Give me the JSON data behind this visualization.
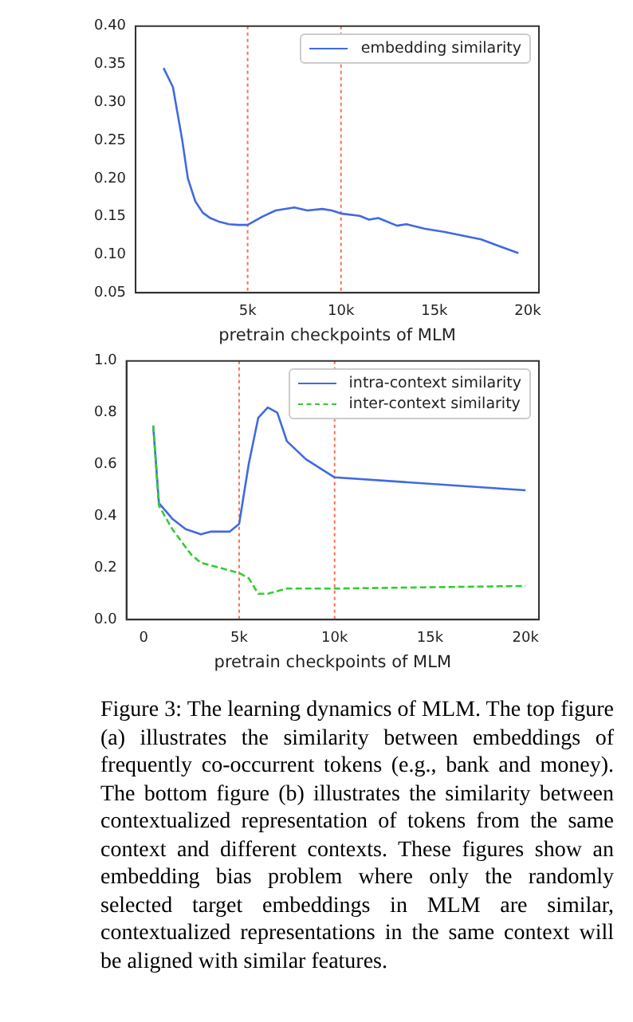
{
  "chart_data": [
    {
      "type": "line",
      "xlabel": "pretrain checkpoints of MLM",
      "legend": "top right",
      "marker": "none",
      "grid": false,
      "xlim": [
        -1000,
        20600
      ],
      "xticks": [
        {
          "value": 5000,
          "label": "5k"
        },
        {
          "value": 10000,
          "label": "10k"
        },
        {
          "value": 15000,
          "label": "15k"
        },
        {
          "value": 20000,
          "label": "20k"
        }
      ],
      "ylim": [
        0.05,
        0.4
      ],
      "yticks": [
        {
          "value": 0.05,
          "label": "0.05"
        },
        {
          "value": 0.1,
          "label": "0.10"
        },
        {
          "value": 0.15,
          "label": "0.15"
        },
        {
          "value": 0.2,
          "label": "0.20"
        },
        {
          "value": 0.25,
          "label": "0.25"
        },
        {
          "value": 0.3,
          "label": "0.30"
        },
        {
          "value": 0.35,
          "label": "0.35"
        },
        {
          "value": 0.4,
          "label": "0.40"
        }
      ],
      "ref_lines": [
        {
          "axis": "x",
          "value": 5000,
          "color": "#ff6f4f",
          "line_style": "dotted"
        },
        {
          "axis": "x",
          "value": 10000,
          "color": "#ff6f4f",
          "line_style": "dotted"
        }
      ],
      "series": [
        {
          "name": "embedding similarity",
          "color": "#4169e1",
          "line_style": "solid",
          "x": [
            500,
            1000,
            1500,
            1800,
            2200,
            2600,
            3000,
            3500,
            4000,
            4500,
            5000,
            5800,
            6500,
            7500,
            8200,
            9000,
            9500,
            10000,
            11000,
            11500,
            12000,
            13000,
            13500,
            14500,
            15500,
            16500,
            17500,
            18500,
            19500
          ],
          "values": [
            0.345,
            0.32,
            0.25,
            0.2,
            0.17,
            0.155,
            0.148,
            0.143,
            0.14,
            0.139,
            0.139,
            0.15,
            0.158,
            0.162,
            0.158,
            0.16,
            0.158,
            0.154,
            0.151,
            0.146,
            0.148,
            0.138,
            0.14,
            0.134,
            0.13,
            0.125,
            0.12,
            0.111,
            0.102
          ]
        }
      ]
    },
    {
      "type": "line",
      "xlabel": "pretrain checkpoints of MLM",
      "legend": "top right",
      "marker": "none",
      "grid": false,
      "xlim": [
        -900,
        20700
      ],
      "xticks": [
        {
          "value": 0,
          "label": "0"
        },
        {
          "value": 5000,
          "label": "5k"
        },
        {
          "value": 10000,
          "label": "10k"
        },
        {
          "value": 15000,
          "label": "15k"
        },
        {
          "value": 20000,
          "label": "20k"
        }
      ],
      "ylim": [
        0,
        1
      ],
      "yticks": [
        {
          "value": 0,
          "label": "0.0"
        },
        {
          "value": 0.2,
          "label": "0.2"
        },
        {
          "value": 0.4,
          "label": "0.4"
        },
        {
          "value": 0.6,
          "label": "0.6"
        },
        {
          "value": 0.8,
          "label": "0.8"
        },
        {
          "value": 1,
          "label": "1.0"
        }
      ],
      "ref_lines": [
        {
          "axis": "x",
          "value": 5000,
          "color": "#ff6f4f",
          "line_style": "dotted"
        },
        {
          "axis": "x",
          "value": 10000,
          "color": "#ff6f4f",
          "line_style": "dotted"
        }
      ],
      "annotations": [
        "Figure 3: The learning dynamics of MLM. The top figure (a) illustrates the similarity between embeddings of frequently co-occurrent tokens (e.g., bank and money). The bottom figure (b) illustrates the similarity between contextualized representation of tokens from the same context and different contexts. These figures show an embedding bias problem where only the randomly selected target embeddings in MLM are similar, contextualized representations in the same context will be aligned with similar features."
      ],
      "series": [
        {
          "name": "intra-context similarity",
          "color": "#4169e1",
          "line_style": "solid",
          "x": [
            500,
            800,
            1500,
            2200,
            3000,
            3500,
            4500,
            5000,
            5500,
            6000,
            6500,
            7000,
            7500,
            8500,
            10000,
            20000
          ],
          "values": [
            0.75,
            0.45,
            0.39,
            0.35,
            0.33,
            0.34,
            0.34,
            0.37,
            0.6,
            0.78,
            0.82,
            0.8,
            0.69,
            0.62,
            0.55,
            0.5
          ]
        },
        {
          "name": "inter-context similarity",
          "color": "#33cc33",
          "line_style": "dashed",
          "x": [
            500,
            800,
            1500,
            2500,
            3000,
            4000,
            5000,
            5500,
            6000,
            6500,
            7500,
            10000,
            20000
          ],
          "values": [
            0.75,
            0.44,
            0.35,
            0.25,
            0.22,
            0.2,
            0.18,
            0.16,
            0.1,
            0.1,
            0.12,
            0.12,
            0.13
          ]
        }
      ]
    }
  ]
}
